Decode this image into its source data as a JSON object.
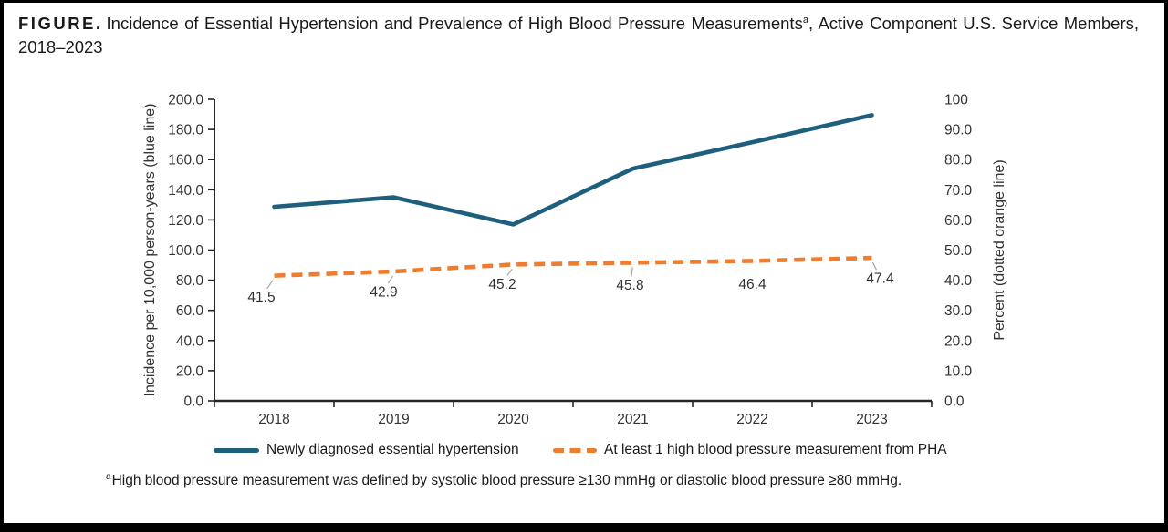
{
  "figure": {
    "title": {
      "prefix": "FIGURE.",
      "body": "Incidence of Essential Hypertension and Prevalence of High Blood Pressure Measurements",
      "superscript": "a",
      "body_after": ", Active Component U.S. Service Members, 2018–2023"
    },
    "footnote": {
      "superscript": "a",
      "text": "High blood pressure measurement was defined by systolic blood pressure ≥130 mmHg or diastolic blood pressure ≥80 mmHg."
    }
  },
  "chart_data": {
    "type": "line",
    "x_categories": [
      "2018",
      "2019",
      "2020",
      "2021",
      "2022",
      "2023"
    ],
    "series": [
      {
        "name": "Newly diagnosed essential hypertension",
        "axis": "left",
        "color": "#1E5F7D",
        "line_style": "solid",
        "values": [
          128.7,
          135.0,
          117.0,
          154.0,
          171.5,
          189.5
        ]
      },
      {
        "name": "At least 1 high blood pressure measurement from PHA",
        "axis": "right",
        "color": "#ED7D31",
        "line_style": "dashed",
        "values": [
          41.5,
          42.9,
          45.2,
          45.8,
          46.4,
          47.4
        ],
        "data_labels": [
          "41.5",
          "42.9",
          "45.2",
          "45.8",
          "46.4",
          "47.4"
        ]
      }
    ],
    "left_axis": {
      "title": "Incidence per 10,000 person-years (blue line)",
      "min": 0,
      "max": 200,
      "tick_labels": [
        "0.0",
        "20.0",
        "40.0",
        "60.0",
        "80.0",
        "100.0",
        "120.0",
        "140.0",
        "160.0",
        "180.0",
        "200.0"
      ]
    },
    "right_axis": {
      "title": "Percent (dotted orange line)",
      "min": 0,
      "max": 100,
      "tick_labels": [
        "0.0",
        "10.0",
        "20.0",
        "30.0",
        "40.0",
        "50.0",
        "60.0",
        "70.0",
        "80.0",
        "90.0",
        "100"
      ]
    },
    "grid": false,
    "legend_position": "bottom",
    "axis_color": "#262626",
    "tick_label_color": "#333333",
    "data_label_color": "#333333",
    "leader_line_color": "#ABABAB"
  },
  "legend": {
    "items": [
      {
        "label": "Newly diagnosed essential hypertension",
        "color": "#1E5F7D",
        "style": "solid"
      },
      {
        "label": "At least 1 high blood pressure measurement from PHA",
        "color": "#ED7D31",
        "style": "dashed"
      }
    ]
  }
}
